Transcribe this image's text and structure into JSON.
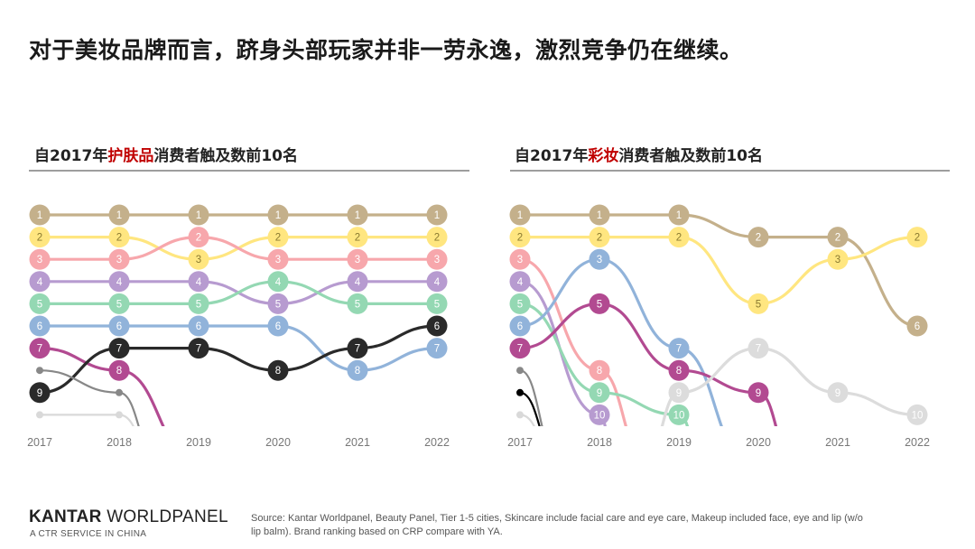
{
  "page": {
    "title": "对于美妆品牌而言，跻身头部玩家并非一劳永逸，激烈竞争仍在继续。",
    "brand_name": "KANTAR",
    "brand_name_2": "WORLDPANEL",
    "brand_sub": "A CTR SERVICE IN CHINA",
    "source": "Source: Kantar Worldpanel, Beauty Panel, Tier 1-5 cities, Skincare include facial care and eye care, Makeup included face, eye and lip (w/o lip balm). Brand ranking based on CRP compare with YA."
  },
  "chart_data": [
    {
      "type": "line",
      "subtitle_pre": "自2017年",
      "subtitle_highlight": "护肤品",
      "subtitle_post": "消费者触及数前10名",
      "x": [
        "2017",
        "2018",
        "2019",
        "2020",
        "2021",
        "2022"
      ],
      "y_axis": "rank, 1 at top, inverted",
      "ylim": [
        1,
        10
      ],
      "grid": false,
      "series": [
        {
          "color": "#c4b08b",
          "ranks": [
            1,
            1,
            1,
            1,
            1,
            1
          ]
        },
        {
          "color": "#ffe680",
          "ranks": [
            2,
            2,
            3,
            2,
            2,
            2
          ]
        },
        {
          "color": "#f7a7ac",
          "ranks": [
            3,
            3,
            2,
            3,
            3,
            3
          ]
        },
        {
          "color": "#b79bd0",
          "ranks": [
            4,
            4,
            4,
            5,
            4,
            4
          ]
        },
        {
          "color": "#94d8b3",
          "ranks": [
            5,
            5,
            5,
            4,
            5,
            5
          ]
        },
        {
          "color": "#91b3da",
          "ranks": [
            6,
            6,
            6,
            6,
            8,
            7
          ]
        },
        {
          "color": "#b24a91",
          "ranks": [
            7,
            8,
            null,
            null,
            null,
            null
          ],
          "exit_to": 2019
        },
        {
          "color": "#2a2a2a",
          "ranks": [
            9,
            7,
            7,
            8,
            7,
            6
          ]
        },
        {
          "color": "#888888",
          "ranks": [
            8,
            9,
            null,
            null,
            null,
            null
          ],
          "exit_to": 2018.5,
          "small_markers": true
        },
        {
          "color": "#d9d9d9",
          "ranks": [
            10,
            10,
            null,
            null,
            null,
            null
          ],
          "exit_to": 2018.5,
          "small_markers": true
        }
      ]
    },
    {
      "type": "line",
      "subtitle_pre": "自2017年",
      "subtitle_highlight": "彩妆",
      "subtitle_post": "消费者触及数前10名",
      "x": [
        "2017",
        "2018",
        "2019",
        "2020",
        "2021",
        "2022"
      ],
      "y_axis": "rank, 1 at top, inverted",
      "ylim": [
        1,
        10
      ],
      "grid": false,
      "series": [
        {
          "color": "#c4b08b",
          "ranks": [
            1,
            1,
            1,
            2,
            2,
            6
          ]
        },
        {
          "color": "#ffe680",
          "ranks": [
            2,
            2,
            2,
            5,
            3,
            2
          ]
        },
        {
          "color": "#f7a7ac",
          "ranks": [
            3,
            8,
            null,
            null,
            null,
            null
          ],
          "exit_to": 2018.6
        },
        {
          "color": "#b79bd0",
          "ranks": [
            4,
            10,
            null,
            null,
            null,
            null
          ],
          "exit_to": 2018.2
        },
        {
          "color": "#94d8b3",
          "ranks": [
            5,
            9,
            10,
            null,
            null,
            null
          ],
          "exit_to": 2019.3
        },
        {
          "color": "#91b3da",
          "ranks": [
            6,
            3,
            7,
            null,
            null,
            null
          ],
          "exit_to": 2019.9
        },
        {
          "color": "#b24a91",
          "ranks": [
            7,
            5,
            8,
            9,
            null,
            null
          ],
          "exit_to": 2020.45
        },
        {
          "color": "#dcdcdc",
          "ranks": [
            null,
            null,
            9,
            7,
            9,
            10
          ],
          "enter_from": 2018.6
        },
        {
          "color": "#888888",
          "ranks": [
            8,
            null,
            null,
            null,
            null,
            null
          ],
          "exit_to": 2017.5,
          "small_markers": true
        },
        {
          "color": "#000000",
          "ranks": [
            9,
            null,
            null,
            null,
            null,
            null
          ],
          "exit_to": 2017.5,
          "small_markers": true
        },
        {
          "color": "#d9d9d9",
          "ranks": [
            10,
            null,
            null,
            null,
            null,
            null
          ],
          "exit_to": 2017.5,
          "small_markers": true
        }
      ]
    }
  ]
}
